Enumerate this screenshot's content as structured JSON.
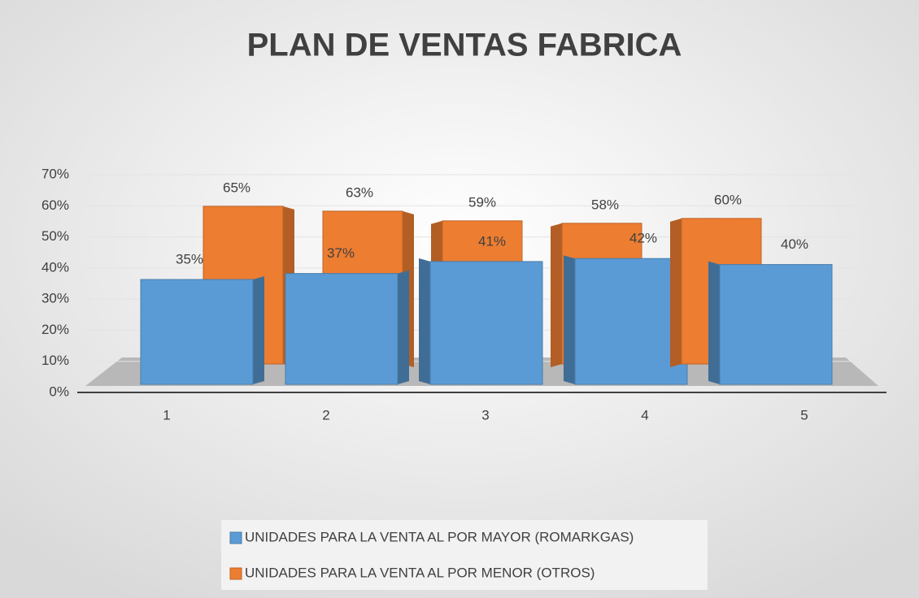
{
  "chart_data": {
    "type": "bar3d",
    "title": "PLAN DE VENTAS FABRICA",
    "categories": [
      "1",
      "2",
      "3",
      "4",
      "5"
    ],
    "series": [
      {
        "name": "UNIDADES PARA LA VENTA AL POR MAYOR (ROMARKGAS)",
        "color": "#5b9bd5",
        "values": [
          35,
          37,
          41,
          42,
          40
        ],
        "value_labels": [
          "35%",
          "37%",
          "41%",
          "42%",
          "40%"
        ]
      },
      {
        "name": "UNIDADES PARA LA VENTA AL POR MENOR (OTROS)",
        "color": "#ed7d31",
        "values": [
          65,
          63,
          59,
          58,
          60
        ],
        "value_labels": [
          "65%",
          "63%",
          "59%",
          "58%",
          "60%"
        ]
      }
    ],
    "ylim": [
      0,
      70
    ],
    "yticks": [
      {
        "value": 0,
        "label": "0%"
      },
      {
        "value": 10,
        "label": "10%"
      },
      {
        "value": 20,
        "label": "20%"
      },
      {
        "value": 30,
        "label": "30%"
      },
      {
        "value": 40,
        "label": "40%"
      },
      {
        "value": 50,
        "label": "50%"
      },
      {
        "value": 60,
        "label": "60%"
      },
      {
        "value": 70,
        "label": "70%"
      }
    ],
    "grid": true,
    "legend": "bottom"
  }
}
